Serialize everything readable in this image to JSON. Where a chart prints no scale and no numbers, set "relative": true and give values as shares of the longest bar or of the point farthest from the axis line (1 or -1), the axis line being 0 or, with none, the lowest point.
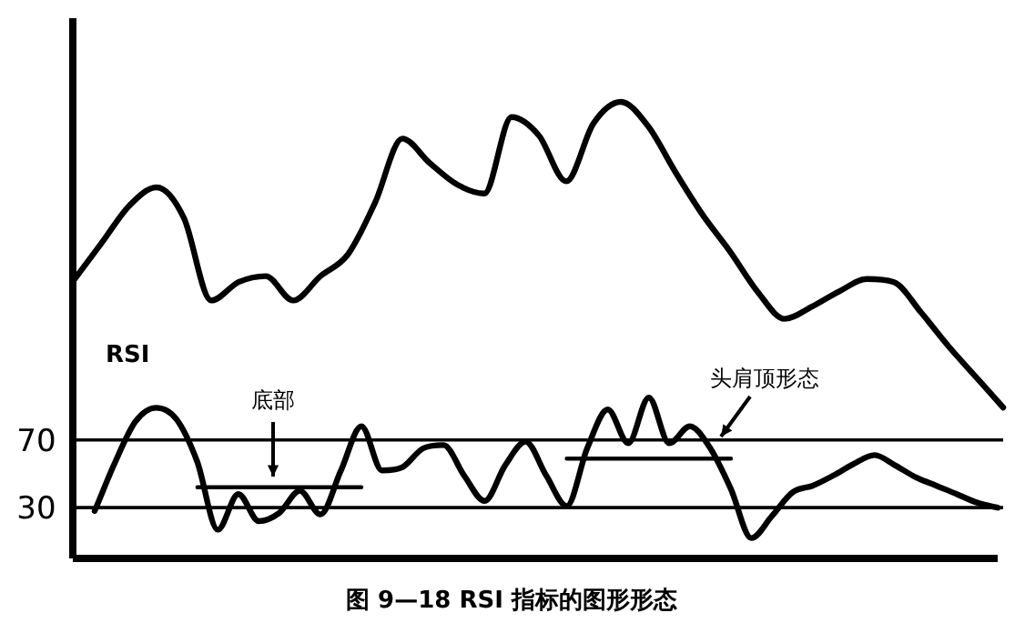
{
  "chart_data": [
    {
      "type": "line",
      "relative": true,
      "categories": [
        null,
        null,
        null,
        null,
        null,
        null,
        null,
        null,
        null,
        null,
        null,
        null,
        null,
        null,
        null,
        null,
        null,
        null,
        null,
        null,
        null,
        null,
        null,
        null,
        null,
        null,
        null,
        null,
        null,
        null,
        null,
        null,
        null,
        null,
        null
      ],
      "series": [
        {
          "color": "#000000",
          "values": [
            0.42,
            0.54,
            0.66,
            0.72,
            0.62,
            0.35,
            0.41,
            0.43,
            0.35,
            0.43,
            0.5,
            0.67,
            0.88,
            0.8,
            0.73,
            0.7,
            0.95,
            0.89,
            0.74,
            0.93,
            1,
            0.92,
            0.77,
            0.63,
            0.51,
            0.38,
            0.29,
            0.33,
            0.38,
            0.42,
            0.41,
            0.31,
            0.2,
            0.1,
            0
          ]
        }
      ]
    },
    {
      "type": "line",
      "title": "RSI",
      "ylim": [
        0,
        115
      ],
      "yticks": [
        70,
        30
      ],
      "tick_labels": "y",
      "categories": [
        null,
        null,
        null,
        null,
        null,
        null,
        null,
        null,
        null,
        null,
        null,
        null,
        null,
        null,
        null,
        null,
        null,
        null,
        null,
        null,
        null,
        null,
        null,
        null,
        null,
        null,
        null,
        null,
        null,
        null,
        null,
        null,
        null,
        null,
        null,
        null,
        null,
        null,
        null,
        null,
        null,
        null,
        null,
        null,
        null
      ],
      "series": [
        {
          "color": "#000000",
          "values": [
            28,
            57,
            81,
            89,
            82,
            57,
            17,
            38,
            22,
            27,
            40,
            26,
            52,
            78,
            52,
            54,
            65,
            67,
            49,
            34,
            55,
            69,
            49,
            31,
            65,
            88,
            68,
            95,
            68,
            78,
            65,
            41,
            12,
            25,
            39,
            43,
            49,
            56,
            61,
            55,
            48,
            43,
            38,
            33,
            30
          ]
        },
        {
          "color": "#000000",
          "values": [
            null,
            null,
            null,
            null,
            null,
            42,
            42,
            42,
            42,
            42,
            42,
            42,
            42,
            42,
            null,
            null,
            null,
            null,
            null,
            null,
            null,
            null,
            null,
            59,
            59,
            59,
            59,
            59,
            59,
            59,
            59,
            59,
            null,
            null,
            null,
            null,
            null,
            null,
            null,
            null,
            null,
            null,
            null,
            null,
            null
          ]
        }
      ],
      "ref_lines": [
        {
          "axis": "y",
          "value": 70,
          "color": "#000000"
        },
        {
          "axis": "y",
          "value": 30,
          "color": "#000000"
        }
      ],
      "annotations": [
        "底部",
        "头肩顶形态",
        "图 9—18 RSI 指标的图形形态"
      ]
    }
  ]
}
